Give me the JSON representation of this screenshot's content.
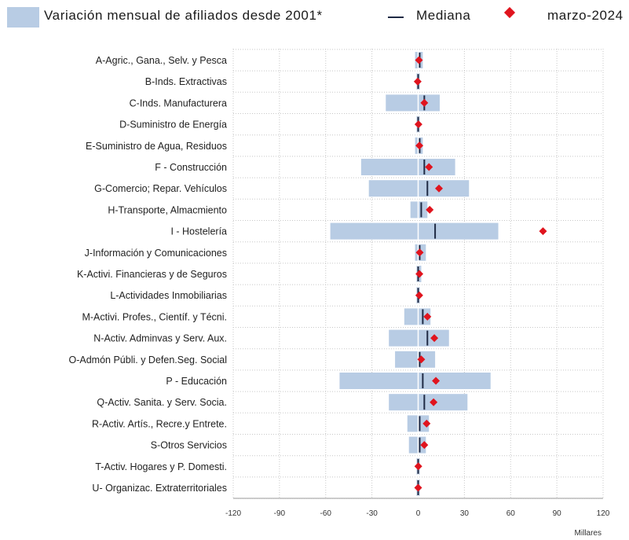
{
  "legend": {
    "range_label": "Variación mensual de afiliados desde 2001*",
    "median_label": "Mediana",
    "current_label": "marzo-2024"
  },
  "colors": {
    "range": "#b8cce4",
    "median": "#1f2a44",
    "current": "#e0141e",
    "grid": "#c8c8c8"
  },
  "chart_data": {
    "type": "bar",
    "orientation": "horizontal",
    "unit_label": "Millares",
    "xlim": [
      -120,
      120
    ],
    "xticks": [
      -120,
      -90,
      -60,
      -30,
      0,
      30,
      60,
      90,
      120
    ],
    "grid": true,
    "categories": [
      "A-Agric., Gana., Selv. y Pesca",
      "B-Inds. Extractivas",
      "C-Inds. Manufacturera",
      "D-Suministro de Energía",
      "E-Suministro de Agua, Residuos",
      "F - Construcción",
      "G-Comercio; Repar. Vehículos",
      "H-Transporte, Almacmiento",
      "I - Hostelería",
      "J-Información y Comunicaciones",
      "K-Activi. Financieras y de Seguros",
      "L-Actividades Inmobiliarias",
      "M-Activi. Profes., Científ. y Técni.",
      "N-Activ. Adminvas y Serv. Aux.",
      "O-Admón Públi. y Defen.Seg. Social",
      "P - Educación",
      "Q-Activ. Sanita. y Serv. Socia.",
      "R-Activ. Artís., Recre.y Entrete.",
      "S-Otros Servicios",
      "T-Activ. Hogares y P. Domesti.",
      "U- Organizac. Extraterritoriales"
    ],
    "series": [
      {
        "name": "Variación mensual de afiliados desde 2001*",
        "kind": "range",
        "min": [
          -2,
          -1,
          -21,
          -1,
          -2,
          -37,
          -32,
          -5,
          -57,
          -2,
          -1,
          -1,
          -9,
          -19,
          -15,
          -51,
          -19,
          -7,
          -6,
          -1,
          -1
        ],
        "max": [
          3,
          1,
          14,
          1,
          3,
          24,
          33,
          6,
          52,
          5,
          2,
          1,
          8,
          20,
          11,
          47,
          32,
          7,
          5,
          1,
          1
        ]
      },
      {
        "name": "Mediana",
        "kind": "marker-line",
        "values": [
          1,
          0,
          4,
          0,
          1,
          4,
          6,
          2,
          11,
          1,
          0,
          0,
          3,
          6,
          1,
          3,
          4,
          1,
          1,
          0,
          0
        ]
      },
      {
        "name": "marzo-2024",
        "kind": "point",
        "values": [
          0.5,
          -0.3,
          4,
          0.2,
          0.8,
          7,
          13.5,
          7.5,
          81,
          1,
          0.8,
          0.7,
          6,
          10.5,
          2,
          11.5,
          10,
          5.5,
          4,
          0.1,
          0
        ]
      }
    ]
  }
}
